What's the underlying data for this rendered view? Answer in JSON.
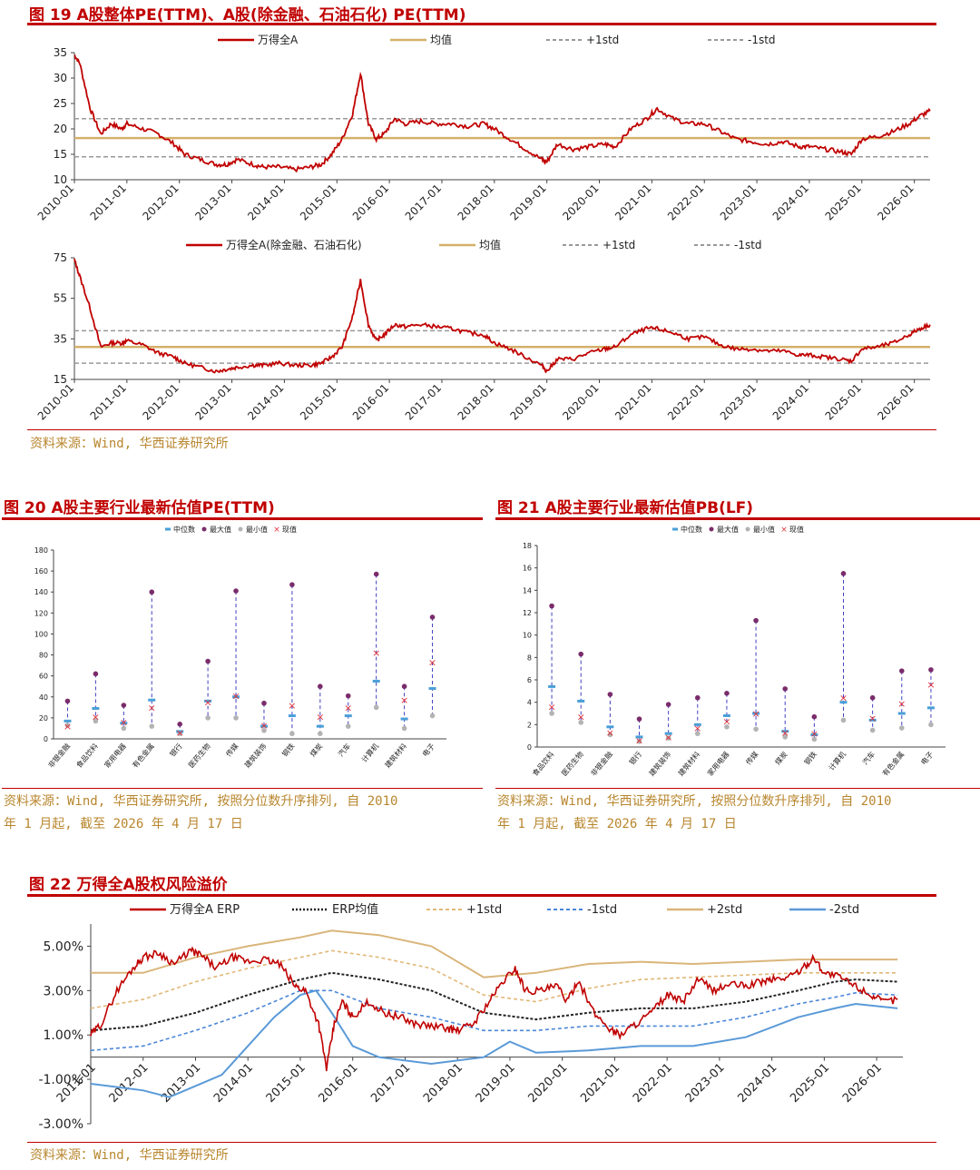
{
  "figures": {
    "fig19": {
      "title": "图 19 A股整体PE(TTM)、A股(除金融、石油石化) PE(TTM)",
      "source": "资料来源：Wind, 华西证券研究所"
    },
    "fig20": {
      "title": "图 20 A股主要行业最新估值PE(TTM)",
      "source_line1": "资料来源：Wind, 华西证券研究所, 按照分位数升序排列, 自 2010",
      "source_line2": "年 1 月起, 截至 2026 年 4 月 17 日"
    },
    "fig21": {
      "title": "图 21 A股主要行业最新估值PB(LF)",
      "source_line1": "资料来源：Wind, 华西证券研究所, 按照分位数升序排列, 自 2010",
      "source_line2": "年 1 月起, 截至 2026 年 4 月 17 日"
    },
    "fig22": {
      "title": "图 22 万得全A股权风险溢价",
      "source": "资料来源：Wind, 华西证券研究所"
    }
  },
  "colors": {
    "accent": "#c00000",
    "series_red": "#c00000",
    "mean_gold": "#d4b06a",
    "std_gray": "#999999",
    "median_blue": "#4a9fd8",
    "max_purple": "#7a2c6b",
    "min_gray": "#b3b3b3",
    "current_red": "#e0303a",
    "range_blue": "#4040c0",
    "erp_black": "#222222",
    "plus1_gold": "#e0b878",
    "minus1_blue": "#4a86d8",
    "plus2_gold": "#d9b57a",
    "minus2_blue": "#5a9ad8",
    "source_gold": "#b8862e"
  },
  "chart_data": [
    {
      "id": "pe_all_a",
      "type": "line",
      "legend": [
        "万得全A",
        "均值",
        "+1std",
        "-1std"
      ],
      "x_ticks": [
        "2010-01",
        "2011-01",
        "2012-01",
        "2013-01",
        "2014-01",
        "2015-01",
        "2016-01",
        "2017-01",
        "2018-01",
        "2019-01",
        "2020-01",
        "2021-01",
        "2022-01",
        "2023-01",
        "2024-01",
        "2025-01",
        "2026-01"
      ],
      "y_ticks": [
        "35",
        "30",
        "25",
        "20",
        "15",
        "10"
      ],
      "ylim": [
        10,
        35
      ],
      "xlim": [
        2010.0,
        2026.3
      ],
      "mean": 18.2,
      "plus1std": 22.0,
      "minus1std": 14.5,
      "series": [
        {
          "name": "万得全A",
          "x": [
            2010.0,
            2010.1,
            2010.3,
            2010.5,
            2010.7,
            2010.9,
            2011.0,
            2011.3,
            2011.6,
            2011.9,
            2012.1,
            2012.4,
            2012.7,
            2012.9,
            2013.1,
            2013.4,
            2013.6,
            2013.9,
            2014.2,
            2014.5,
            2014.7,
            2014.9,
            2015.1,
            2015.3,
            2015.45,
            2015.6,
            2015.75,
            2015.9,
            2016.1,
            2016.3,
            2016.6,
            2016.9,
            2017.2,
            2017.5,
            2017.8,
            2018.0,
            2018.3,
            2018.6,
            2018.9,
            2019.0,
            2019.2,
            2019.5,
            2019.8,
            2020.1,
            2020.3,
            2020.6,
            2020.9,
            2021.1,
            2021.4,
            2021.7,
            2022.0,
            2022.3,
            2022.6,
            2022.9,
            2023.2,
            2023.5,
            2023.8,
            2024.0,
            2024.3,
            2024.6,
            2024.8,
            2025.0,
            2025.3,
            2025.6,
            2025.9,
            2026.1,
            2026.3
          ],
          "y": [
            34.5,
            33,
            24,
            19,
            21,
            20,
            21,
            20,
            19,
            17,
            15,
            14,
            13,
            13,
            14,
            13,
            12.5,
            12.5,
            12,
            12.5,
            13,
            15,
            18,
            23,
            31,
            21,
            18,
            19,
            22,
            21,
            21.5,
            21,
            21,
            20.5,
            21,
            20,
            18,
            16,
            14,
            13.5,
            17,
            16,
            16.5,
            17,
            16.5,
            20,
            22,
            24,
            22,
            21,
            21,
            19.5,
            18,
            17.5,
            17,
            17.5,
            16.5,
            16.5,
            16,
            15.5,
            15,
            18,
            18.5,
            19.5,
            21,
            22.5,
            23.5
          ]
        }
      ]
    },
    {
      "id": "pe_ex_fin_oil",
      "type": "line",
      "legend": [
        "万得全A(除金融、石油石化)",
        "均值",
        "+1std",
        "-1std"
      ],
      "x_ticks": [
        "2010-01",
        "2011-01",
        "2012-01",
        "2013-01",
        "2014-01",
        "2015-01",
        "2016-01",
        "2017-01",
        "2018-01",
        "2019-01",
        "2020-01",
        "2021-01",
        "2022-01",
        "2023-01",
        "2024-01",
        "2025-01",
        "2026-01"
      ],
      "y_ticks": [
        "75",
        "55",
        "35",
        "15"
      ],
      "ylim": [
        15,
        75
      ],
      "xlim": [
        2010.0,
        2026.3
      ],
      "mean": 31,
      "plus1std": 39,
      "minus1std": 23,
      "series": [
        {
          "name": "万得全A(除金融、石油石化)",
          "x": [
            2010.0,
            2010.1,
            2010.3,
            2010.5,
            2010.7,
            2010.9,
            2011.0,
            2011.3,
            2011.6,
            2011.9,
            2012.1,
            2012.4,
            2012.7,
            2012.9,
            2013.1,
            2013.4,
            2013.6,
            2013.9,
            2014.2,
            2014.5,
            2014.7,
            2014.9,
            2015.1,
            2015.3,
            2015.45,
            2015.6,
            2015.75,
            2015.9,
            2016.1,
            2016.3,
            2016.6,
            2016.9,
            2017.2,
            2017.5,
            2017.8,
            2018.0,
            2018.3,
            2018.6,
            2018.9,
            2019.0,
            2019.2,
            2019.5,
            2019.8,
            2020.1,
            2020.3,
            2020.6,
            2020.9,
            2021.1,
            2021.4,
            2021.7,
            2022.0,
            2022.3,
            2022.6,
            2022.9,
            2023.2,
            2023.5,
            2023.8,
            2024.0,
            2024.3,
            2024.6,
            2024.8,
            2025.0,
            2025.3,
            2025.6,
            2025.9,
            2026.1,
            2026.3
          ],
          "y": [
            74,
            66,
            50,
            31,
            33,
            33,
            34,
            32,
            28,
            26,
            23,
            21,
            19,
            20,
            21,
            22,
            22,
            23,
            22,
            22,
            23,
            26,
            31,
            46,
            64,
            42,
            34,
            37,
            42,
            41,
            42,
            41,
            40,
            38,
            37,
            33,
            30,
            26,
            22,
            19,
            25,
            25,
            28,
            30,
            31,
            37,
            40,
            40,
            38,
            35,
            36,
            32,
            30,
            30,
            29,
            29,
            27,
            27,
            26,
            25,
            24,
            30,
            31,
            33,
            37,
            40,
            42
          ]
        }
      ]
    },
    {
      "id": "industry_pe",
      "type": "scatter",
      "legend": [
        "中位数",
        "最大值",
        "最小值",
        "现值"
      ],
      "categories": [
        "非银金融",
        "食品饮料",
        "家用电器",
        "有色金属",
        "银行",
        "医药生物",
        "传媒",
        "建筑装饰",
        "钢铁",
        "煤炭",
        "汽车",
        "计算机",
        "建筑材料",
        "电子"
      ],
      "y_ticks": [
        "180",
        "160",
        "140",
        "120",
        "100",
        "80",
        "60",
        "40",
        "20",
        "0"
      ],
      "ylim": [
        0,
        180
      ],
      "median": [
        17,
        29,
        15,
        37,
        7,
        36,
        40,
        12,
        22,
        12,
        22,
        55,
        19,
        48
      ],
      "max": [
        36,
        62,
        32,
        140,
        14,
        74,
        141,
        34,
        147,
        50,
        41,
        157,
        50,
        116
      ],
      "min": [
        13,
        17,
        10,
        12,
        5,
        20,
        20,
        8,
        5,
        5,
        12,
        30,
        10,
        22
      ],
      "current": [
        12,
        21,
        16,
        30,
        6,
        35,
        41,
        13,
        32,
        21,
        30,
        82,
        37,
        73
      ]
    },
    {
      "id": "industry_pb",
      "type": "scatter",
      "legend": [
        "中位数",
        "最大值",
        "最小值",
        "现值"
      ],
      "categories": [
        "食品饮料",
        "医药生物",
        "非银金融",
        "银行",
        "建筑装饰",
        "建筑材料",
        "家用电器",
        "传媒",
        "煤炭",
        "钢铁",
        "计算机",
        "汽车",
        "有色金属",
        "电子"
      ],
      "y_ticks": [
        "18",
        "16",
        "14",
        "12",
        "10",
        "8",
        "6",
        "4",
        "2",
        "0"
      ],
      "ylim": [
        0,
        18
      ],
      "median": [
        5.4,
        4.1,
        1.8,
        0.9,
        1.2,
        2.0,
        2.8,
        3.0,
        1.4,
        1.1,
        4.0,
        2.4,
        3.0,
        3.5
      ],
      "max": [
        12.6,
        8.3,
        4.7,
        2.5,
        3.8,
        4.4,
        4.8,
        11.3,
        5.2,
        2.7,
        15.5,
        4.4,
        6.8,
        6.9
      ],
      "min": [
        3.0,
        2.2,
        1.1,
        0.5,
        0.8,
        1.2,
        1.8,
        1.6,
        0.9,
        0.7,
        2.4,
        1.5,
        1.7,
        2.0
      ],
      "current": [
        3.6,
        2.7,
        1.3,
        0.6,
        0.9,
        1.7,
        2.3,
        3.0,
        1.3,
        1.2,
        4.4,
        2.6,
        3.9,
        5.6
      ]
    },
    {
      "id": "erp",
      "type": "line",
      "legend": [
        "万得全A ERP",
        "ERP均值",
        "+1std",
        "-1std",
        "+2std",
        "-2std"
      ],
      "x_ticks": [
        "2011-01",
        "2012-01",
        "2013-01",
        "2014-01",
        "2015-01",
        "2016-01",
        "2017-01",
        "2018-01",
        "2019-01",
        "2020-01",
        "2021-01",
        "2022-01",
        "2023-01",
        "2024-01",
        "2025-01",
        "2026-01"
      ],
      "y_ticks": [
        "5.00%",
        "3.00%",
        "1.00%",
        "-1.00%",
        "-3.00%"
      ],
      "ylim": [
        -3,
        6
      ],
      "xlim": [
        2011.0,
        2026.5
      ],
      "series": [
        {
          "name": "万得全A ERP",
          "x": [
            2011.0,
            2011.2,
            2011.5,
            2011.8,
            2012.0,
            2012.3,
            2012.6,
            2012.9,
            2013.1,
            2013.4,
            2013.7,
            2014.0,
            2014.3,
            2014.6,
            2014.9,
            2015.1,
            2015.35,
            2015.5,
            2015.65,
            2015.8,
            2016.0,
            2016.3,
            2016.6,
            2016.9,
            2017.2,
            2017.5,
            2017.8,
            2018.0,
            2018.3,
            2018.6,
            2018.9,
            2019.1,
            2019.3,
            2019.6,
            2019.9,
            2020.1,
            2020.3,
            2020.6,
            2020.9,
            2021.1,
            2021.4,
            2021.7,
            2022.0,
            2022.3,
            2022.6,
            2022.9,
            2023.2,
            2023.5,
            2023.8,
            2024.0,
            2024.3,
            2024.6,
            2024.8,
            2025.0,
            2025.3,
            2025.6,
            2025.9,
            2026.1,
            2026.4
          ],
          "y": [
            1.0,
            1.5,
            3.0,
            4.0,
            4.5,
            4.7,
            4.2,
            4.8,
            4.6,
            4.0,
            4.5,
            4.3,
            4.4,
            4.2,
            3.2,
            3.0,
            1.5,
            -0.5,
            1.5,
            2.5,
            1.8,
            2.5,
            2.0,
            1.8,
            1.5,
            1.4,
            1.3,
            1.2,
            1.5,
            2.5,
            3.5,
            4.0,
            3.0,
            3.0,
            3.2,
            2.5,
            3.5,
            2.0,
            1.3,
            1.0,
            1.5,
            2.0,
            2.8,
            2.5,
            3.5,
            3.0,
            3.3,
            3.2,
            3.4,
            3.5,
            3.6,
            4.0,
            4.5,
            3.8,
            3.6,
            3.2,
            2.8,
            2.5,
            2.6
          ]
        },
        {
          "name": "ERP均值",
          "x": [
            2011.0,
            2012.0,
            2013.0,
            2014.0,
            2015.0,
            2015.6,
            2016.5,
            2017.5,
            2018.5,
            2019.5,
            2020.5,
            2021.5,
            2022.5,
            2023.5,
            2024.5,
            2025.2,
            2025.6,
            2026.4
          ],
          "y": [
            1.2,
            1.4,
            2.0,
            2.8,
            3.5,
            3.8,
            3.5,
            3.0,
            2.0,
            1.7,
            2.0,
            2.2,
            2.2,
            2.5,
            3.0,
            3.4,
            3.5,
            3.4
          ]
        },
        {
          "name": "+1std",
          "x": [
            2011.0,
            2012.0,
            2013.0,
            2014.0,
            2015.0,
            2015.6,
            2016.5,
            2017.5,
            2018.5,
            2019.5,
            2020.5,
            2021.5,
            2022.5,
            2023.5,
            2024.5,
            2025.2,
            2025.6,
            2026.4
          ],
          "y": [
            2.2,
            2.6,
            3.4,
            4.0,
            4.5,
            4.8,
            4.5,
            4.0,
            2.8,
            2.5,
            3.1,
            3.5,
            3.6,
            3.7,
            3.8,
            3.8,
            3.8,
            3.8
          ]
        },
        {
          "name": "-1std",
          "x": [
            2011.0,
            2012.0,
            2013.0,
            2014.0,
            2015.0,
            2015.6,
            2016.5,
            2017.5,
            2018.5,
            2019.5,
            2020.5,
            2021.5,
            2022.5,
            2023.5,
            2024.5,
            2025.2,
            2025.6,
            2026.4
          ],
          "y": [
            0.3,
            0.5,
            1.2,
            2.0,
            3.0,
            3.0,
            2.2,
            1.8,
            1.2,
            1.2,
            1.4,
            1.4,
            1.4,
            1.8,
            2.4,
            2.7,
            2.9,
            2.8
          ]
        },
        {
          "name": "+2std",
          "x": [
            2011.0,
            2012.0,
            2013.0,
            2014.0,
            2015.0,
            2015.6,
            2016.5,
            2017.5,
            2018.5,
            2019.5,
            2020.5,
            2021.5,
            2022.5,
            2023.5,
            2024.5,
            2025.2,
            2025.6,
            2026.4
          ],
          "y": [
            3.8,
            3.8,
            4.5,
            5.0,
            5.4,
            5.7,
            5.5,
            5.0,
            3.6,
            3.8,
            4.2,
            4.3,
            4.2,
            4.3,
            4.4,
            4.4,
            4.4,
            4.4
          ]
        },
        {
          "name": "-2std",
          "x": [
            2011.0,
            2012.0,
            2012.5,
            2013.0,
            2013.5,
            2014.0,
            2014.5,
            2015.0,
            2015.3,
            2015.6,
            2016.0,
            2016.5,
            2017.5,
            2018.5,
            2019.0,
            2019.5,
            2020.5,
            2021.5,
            2022.5,
            2023.5,
            2024.5,
            2025.2,
            2025.6,
            2026.4
          ],
          "y": [
            -1.2,
            -1.5,
            -1.8,
            -1.3,
            -0.8,
            0.5,
            1.8,
            2.8,
            3.0,
            2.0,
            0.5,
            0.0,
            -0.3,
            0.0,
            0.7,
            0.2,
            0.3,
            0.5,
            0.5,
            0.9,
            1.8,
            2.2,
            2.4,
            2.2
          ]
        }
      ]
    }
  ]
}
